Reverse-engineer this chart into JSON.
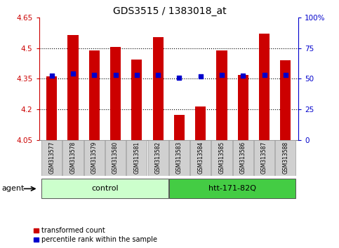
{
  "title": "GDS3515 / 1383018_at",
  "samples": [
    "GSM313577",
    "GSM313578",
    "GSM313579",
    "GSM313580",
    "GSM313581",
    "GSM313582",
    "GSM313583",
    "GSM313584",
    "GSM313585",
    "GSM313586",
    "GSM313587",
    "GSM313588"
  ],
  "red_values": [
    4.363,
    4.565,
    4.49,
    4.505,
    4.445,
    4.555,
    4.175,
    4.215,
    4.49,
    4.37,
    4.57,
    4.44
  ],
  "blue_values": [
    4.365,
    4.375,
    4.37,
    4.37,
    4.37,
    4.37,
    4.355,
    4.36,
    4.37,
    4.365,
    4.37,
    4.37
  ],
  "y_min": 4.05,
  "y_max": 4.65,
  "y_ticks_left": [
    4.05,
    4.2,
    4.35,
    4.5,
    4.65
  ],
  "y_ticks_right": [
    0,
    25,
    50,
    75,
    100
  ],
  "groups": [
    {
      "label": "control",
      "start": 0,
      "end": 5,
      "color": "#ccffcc"
    },
    {
      "label": "htt-171-82Q",
      "start": 6,
      "end": 11,
      "color": "#44cc44"
    }
  ],
  "agent_label": "agent",
  "legend_red": "transformed count",
  "legend_blue": "percentile rank within the sample",
  "bar_color": "#cc0000",
  "dot_color": "#0000cc",
  "left_axis_color": "#cc0000",
  "right_axis_color": "#0000cc",
  "bar_width": 0.5,
  "dot_size": 18,
  "bg_color": "#ffffff"
}
